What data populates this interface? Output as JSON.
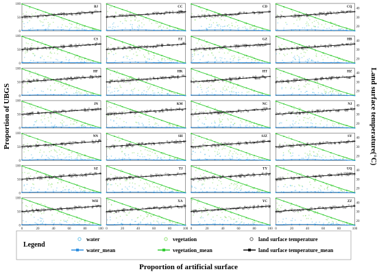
{
  "chart_data": {
    "type": "scatter",
    "layout": "small-multiples 4 columns x 7 rows",
    "panels": [
      "BJ",
      "CC",
      "CD",
      "CQ",
      "CS",
      "FZ",
      "GZ",
      "HB",
      "HF",
      "HK",
      "HT",
      "HZ",
      "JN",
      "KM",
      "NC",
      "NJ",
      "NN",
      "SH",
      "SJZ",
      "SY",
      "SZ",
      "TJ",
      "TY",
      "UQ",
      "WH",
      "XA",
      "YC",
      "ZZ"
    ],
    "x_ticks": [
      "0",
      "20",
      "40",
      "60",
      "80",
      "100"
    ],
    "y_ticks_left": [
      "0",
      "50",
      "100"
    ],
    "y_ticks_right": [
      "20",
      "30",
      "40"
    ],
    "xlim": [
      0,
      100
    ],
    "ylim_left": [
      0,
      100
    ],
    "ylim_right": [
      15,
      45
    ],
    "xlabel": "Proportion of artificial surface",
    "ylabel_left": "Proportion of UBGS",
    "ylabel_right": "Land surface temperature(°C)",
    "series": [
      {
        "name": "water",
        "marker": "open-circle",
        "color": "#4db8e8"
      },
      {
        "name": "vegetation",
        "marker": "open-circle",
        "color": "#7ddc5a"
      },
      {
        "name": "land surface temperature",
        "marker": "open-circle",
        "color": "#444444"
      },
      {
        "name": "water_mean",
        "marker": "filled-square-line",
        "color": "#2f8fe0"
      },
      {
        "name": "vegetation_mean",
        "marker": "filled-square-line",
        "color": "#33cc33"
      },
      {
        "name": "land surface temperature_mean",
        "marker": "filled-square-line",
        "color": "#111111"
      }
    ],
    "mean_trend": {
      "x": [
        0,
        10,
        20,
        30,
        40,
        50,
        60,
        70,
        80,
        90,
        100
      ],
      "vegetation_mean": [
        98,
        88,
        78,
        68,
        58,
        48,
        38,
        28,
        18,
        9,
        1
      ],
      "water_mean": [
        2,
        2,
        3,
        3,
        3,
        3,
        2,
        2,
        2,
        1,
        0
      ],
      "land_surface_temperature_mean": [
        30.0,
        30.6,
        31.2,
        31.8,
        32.4,
        33.0,
        33.6,
        34.2,
        34.8,
        35.4,
        36.0
      ]
    }
  },
  "legend": {
    "title": "Legend",
    "items": [
      "water",
      "vegetation",
      "land surface temperature",
      "water_mean",
      "vegetation_mean",
      "land surface temperature_mean"
    ]
  },
  "colors": {
    "water": "#4db8e8",
    "water_mean": "#2f8fe0",
    "vegetation": "#7ddc5a",
    "vegetation_mean": "#33cc33",
    "lst": "#444444",
    "lst_mean": "#111111",
    "panel_border": "#555555",
    "grid": "#e6e6e6"
  }
}
